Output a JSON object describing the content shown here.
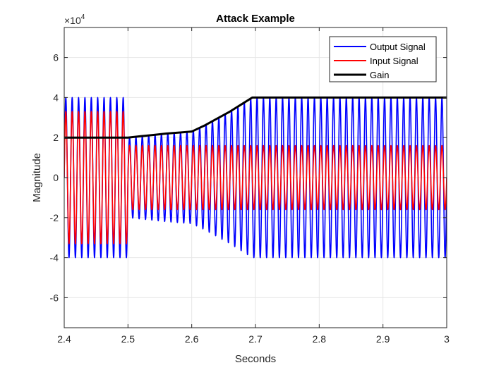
{
  "chart_data": {
    "type": "line",
    "title": "Attack Example",
    "xlabel": "Seconds",
    "ylabel": "Magnitude",
    "xlim": [
      2.4,
      3.0
    ],
    "ylim": [
      -75000,
      75000
    ],
    "y_exponent_label": "×10",
    "y_exponent_power": "4",
    "x_ticks": [
      2.4,
      2.5,
      2.6,
      2.7,
      2.8,
      2.9,
      3.0
    ],
    "x_tick_labels": [
      "2.4",
      "2.5",
      "2.6",
      "2.7",
      "2.8",
      "2.9",
      "3"
    ],
    "y_ticks": [
      -60000,
      -40000,
      -20000,
      0,
      20000,
      40000,
      60000
    ],
    "y_tick_labels": [
      "-6",
      "-4",
      "-2",
      "0",
      "2",
      "4",
      "6"
    ],
    "grid": true,
    "legend_position": "top-right",
    "signal_frequency_hz": 100,
    "series": [
      {
        "name": "Output Signal",
        "color": "#0000ff",
        "kind": "oscillation",
        "envelope_t": [
          2.4,
          2.499,
          2.501,
          2.52,
          2.54,
          2.56,
          2.58,
          2.6,
          2.62,
          2.64,
          2.66,
          2.68,
          2.695,
          3.0
        ],
        "envelope_amp": [
          40000,
          40000,
          20000,
          20700,
          21300,
          22000,
          22500,
          23000,
          26000,
          29500,
          33000,
          37000,
          40000,
          40000
        ]
      },
      {
        "name": "Input Signal",
        "color": "#ff0000",
        "kind": "oscillation",
        "envelope_t": [
          2.4,
          2.499,
          2.501,
          3.0
        ],
        "envelope_amp": [
          33000,
          33000,
          16000,
          16000
        ]
      },
      {
        "name": "Gain",
        "color": "#000000",
        "kind": "line",
        "x": [
          2.4,
          2.5,
          2.52,
          2.54,
          2.56,
          2.58,
          2.6,
          2.62,
          2.64,
          2.66,
          2.68,
          2.695,
          3.0
        ],
        "y": [
          20000,
          20000,
          20700,
          21300,
          22000,
          22500,
          23000,
          26000,
          29500,
          33000,
          37000,
          40000,
          40000
        ]
      }
    ]
  }
}
